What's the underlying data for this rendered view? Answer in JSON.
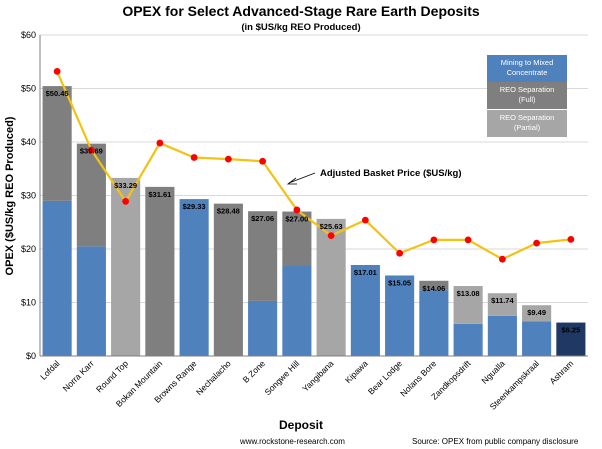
{
  "chart_data": {
    "type": "bar",
    "title": "OPEX for Select Advanced-Stage Rare Earth Deposits",
    "subtitle": "(in $US/kg REO Produced)",
    "xlabel": "Deposit",
    "ylabel": "OPEX ($US/kg REO Produced)",
    "ylim": [
      0,
      60
    ],
    "yticks": [
      "$0",
      "$10",
      "$20",
      "$30",
      "$40",
      "$50",
      "$60"
    ],
    "grid": true,
    "legend_position": "top-right",
    "categories": [
      "Lofdal",
      "Norra Karr",
      "Round Top",
      "Bokan Mountain",
      "Browns Range",
      "Nechalacho",
      "B Zone",
      "Songwe Hill",
      "Yangibana",
      "Kipawa",
      "Bear Lodge",
      "Nolans Bore",
      "Zandkopsdrift",
      "Ngualla",
      "Steenkampskraal",
      "Ashram"
    ],
    "totals": [
      50.45,
      39.69,
      33.29,
      31.61,
      29.33,
      28.48,
      27.06,
      27.0,
      25.63,
      17.01,
      15.05,
      14.06,
      13.08,
      11.74,
      9.49,
      6.25
    ],
    "total_labels": [
      "$50.45",
      "$39.69",
      "$33.29",
      "$31.61",
      "$29.33",
      "$28.48",
      "$27.06",
      "$27.00",
      "$25.63",
      "$17.01",
      "$15.05",
      "$14.06",
      "$13.08",
      "$11.74",
      "$9.49",
      "$6.25"
    ],
    "series": [
      {
        "name": "Mining to Mixed Concentrate",
        "color": "#4f81bd",
        "values": [
          29,
          20.5,
          0,
          0,
          29.33,
          0,
          10.3,
          17,
          0,
          17.01,
          15.05,
          12.3,
          6,
          7.5,
          6.5,
          0
        ]
      },
      {
        "name": "REO Separation (Full)",
        "color": "#7f7f7f",
        "values": [
          21.45,
          19.19,
          0,
          31.61,
          0,
          28.48,
          16.76,
          10,
          0,
          0,
          0,
          1.76,
          0,
          0,
          0,
          0
        ]
      },
      {
        "name": "REO Separation (Partial)",
        "color": "#a6a6a6",
        "values": [
          0,
          0,
          33.29,
          0,
          0,
          0,
          0,
          0,
          25.63,
          0,
          0,
          0,
          7.08,
          4.24,
          2.99,
          0
        ]
      },
      {
        "name": "Adjusted Basket Price ($US/kg)",
        "type": "line",
        "color": "#f2c314",
        "marker_color": "#ff0000",
        "values": [
          53.2,
          38.5,
          28.9,
          39.8,
          37.1,
          36.8,
          36.4,
          27.3,
          22.5,
          25.4,
          19.2,
          21.7,
          21.7,
          18.1,
          21.1,
          21.8
        ]
      }
    ],
    "special_bar": {
      "category": "Ashram",
      "color": "#1f3864"
    },
    "legend": [
      "Mining to Mixed Concentrate",
      "REO Separation (Full)",
      "REO Separation (Partial)"
    ],
    "annotation": "Adjusted Basket Price ($US/kg)"
  },
  "footer": {
    "website": "www.rockstone-research.com",
    "source": "Source: OPEX from public company disclosure"
  }
}
